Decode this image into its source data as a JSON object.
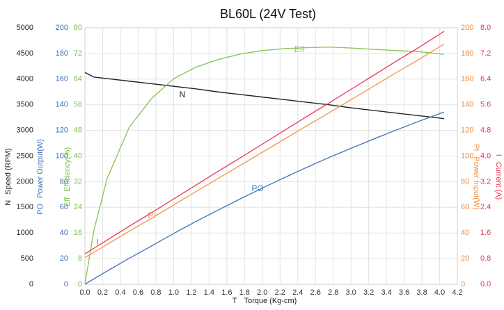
{
  "chart_data": {
    "type": "line",
    "title": "BL60L (24V Test)",
    "x_axis": {
      "symbol": "T",
      "label": "Torque (Kg-cm)"
    },
    "x": [
      0,
      0.1,
      0.25,
      0.5,
      0.75,
      1.0,
      1.25,
      1.5,
      1.75,
      2.0,
      2.25,
      2.5,
      2.75,
      3.0,
      3.25,
      3.5,
      3.75,
      4.05
    ],
    "xlim": [
      0,
      4.2
    ],
    "xticks": [
      {
        "value": 0,
        "label": "0.0"
      },
      0.2,
      0.4,
      0.6,
      0.8,
      {
        "value": 1,
        "label": "1.0"
      },
      1.2,
      1.4,
      1.6,
      1.8,
      {
        "value": 2,
        "label": "2.0"
      },
      2.2,
      2.4,
      2.6,
      2.8,
      {
        "value": 3,
        "label": "3.0"
      },
      3.2,
      3.4,
      3.6,
      3.8,
      {
        "value": 4,
        "label": "4.0"
      },
      4.2
    ],
    "grid": true,
    "y_axes": [
      {
        "symbol": "N",
        "label": "Speed (RPM)",
        "side": "left",
        "color": "#222222",
        "lim": [
          0,
          5000
        ],
        "ticks": [
          0,
          500,
          1000,
          1500,
          2000,
          2500,
          3000,
          3500,
          4000,
          4500,
          5000
        ]
      },
      {
        "symbol": "PO",
        "label": "Power Output(W)",
        "side": "left",
        "color": "#3f6fb5",
        "lim": [
          0,
          200
        ],
        "ticks": [
          0,
          20,
          40,
          60,
          80,
          100,
          120,
          140,
          160,
          180,
          200
        ]
      },
      {
        "symbol": "Eff",
        "label": "Efficiency(%)",
        "side": "left",
        "color": "#7cbf45",
        "lim": [
          0,
          80
        ],
        "ticks": [
          0,
          8,
          16,
          24,
          32,
          40,
          48,
          56,
          64,
          72,
          80
        ]
      },
      {
        "symbol": "PI",
        "label": "Power Input(W)",
        "side": "right",
        "color": "#ef8c3f",
        "lim": [
          0,
          200
        ],
        "ticks": [
          0,
          20,
          40,
          60,
          80,
          100,
          120,
          140,
          160,
          180,
          200
        ]
      },
      {
        "symbol": "I",
        "label": "Current (A)",
        "side": "right",
        "color": "#e5384f",
        "lim": [
          0,
          8
        ],
        "ticks": [
          {
            "value": 0,
            "label": "0.0"
          },
          0.8,
          1.6,
          2.4,
          3.2,
          {
            "value": 4,
            "label": "4.0"
          },
          4.8,
          5.6,
          6.4,
          7.2,
          {
            "value": 8,
            "label": "8.0"
          }
        ]
      }
    ],
    "series": [
      {
        "name": "N",
        "axis": 0,
        "color": "#222222",
        "values": [
          4130,
          4040,
          4010,
          3960,
          3910,
          3860,
          3810,
          3750,
          3700,
          3650,
          3600,
          3550,
          3500,
          3440,
          3390,
          3340,
          3290,
          3230
        ]
      },
      {
        "name": "PO",
        "axis": 1,
        "color": "#4a78bd",
        "values": [
          0,
          4.2,
          10.3,
          20.3,
          29.8,
          39.6,
          48.9,
          57.8,
          66.5,
          75.0,
          83.2,
          91.1,
          98.8,
          106.0,
          113.1,
          120.0,
          126.7,
          134.3
        ]
      },
      {
        "name": "Eff",
        "axis": 2,
        "color": "#8cc65a",
        "values": [
          0,
          16.7,
          33,
          49,
          57.9,
          64.1,
          67.7,
          70.1,
          71.8,
          72.9,
          73.5,
          73.8,
          74.0,
          73.7,
          73.3,
          72.9,
          72.6,
          71.7
        ]
      },
      {
        "name": "PI",
        "axis": 3,
        "color": "#f29b5a",
        "values": [
          20.8,
          24.9,
          31.1,
          41.4,
          51.5,
          61.8,
          72.2,
          82.5,
          92.6,
          102.9,
          113.2,
          123.5,
          133.6,
          143.9,
          154.2,
          164.6,
          174.6,
          187.4
        ]
      },
      {
        "name": "I",
        "axis": 4,
        "color": "#e8485f",
        "values": [
          0.95,
          1.12,
          1.38,
          1.81,
          2.23,
          2.66,
          3.09,
          3.52,
          3.94,
          4.37,
          4.8,
          5.23,
          5.65,
          6.08,
          6.51,
          6.94,
          7.36,
          7.89
        ]
      }
    ]
  }
}
